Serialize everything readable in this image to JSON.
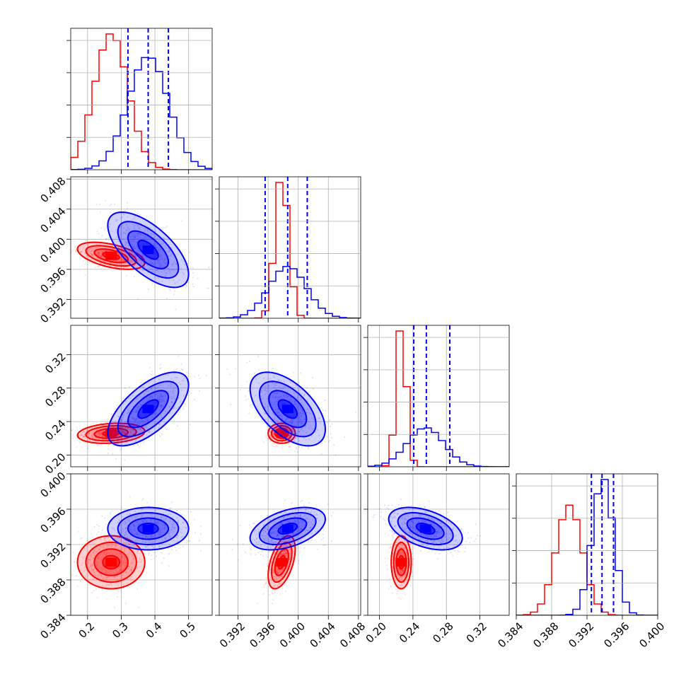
{
  "chart_data": {
    "type": "corner",
    "grid": true,
    "colors": {
      "red": "#ff0000",
      "blue": "#0000ff"
    },
    "parameters": [
      {
        "range": [
          0.15,
          0.57
        ],
        "ticks": [
          0.2,
          0.3,
          0.4,
          0.5
        ],
        "tick_labels": [
          "0.2",
          "0.3",
          "0.4",
          "0.5"
        ]
      },
      {
        "range": [
          0.3895,
          0.4083
        ],
        "ticks": [
          0.392,
          0.396,
          0.4,
          0.404,
          0.408
        ],
        "tick_labels": [
          "0.392",
          "0.396",
          "0.400",
          "0.404",
          "0.408"
        ]
      },
      {
        "range": [
          0.186,
          0.355
        ],
        "ticks": [
          0.2,
          0.24,
          0.28,
          0.32
        ],
        "tick_labels": [
          "0.20",
          "0.24",
          "0.28",
          "0.32"
        ]
      },
      {
        "range": [
          0.384,
          0.4
        ],
        "ticks": [
          0.384,
          0.388,
          0.392,
          0.396,
          0.4
        ],
        "tick_labels": [
          "0.384",
          "0.388",
          "0.392",
          "0.396",
          "0.400"
        ]
      }
    ],
    "series": [
      {
        "color": "red",
        "mean": [
          0.27,
          0.3978,
          0.226,
          0.39
        ],
        "sd": [
          0.05,
          0.0009,
          0.006,
          0.0015
        ],
        "corr": [
          [
            0,
            1,
            -0.5
          ],
          [
            0,
            2,
            0.2
          ],
          [
            0,
            3,
            0.0
          ],
          [
            1,
            2,
            0.0
          ],
          [
            1,
            3,
            0.5
          ],
          [
            2,
            3,
            0.0
          ]
        ]
      },
      {
        "color": "blue",
        "mean": [
          0.38,
          0.3986,
          0.255,
          0.3938
        ],
        "sd": [
          0.06,
          0.0025,
          0.022,
          0.0012
        ],
        "corr": [
          [
            0,
            1,
            -0.65
          ],
          [
            0,
            2,
            0.65
          ],
          [
            0,
            3,
            0.0
          ],
          [
            1,
            2,
            -0.55
          ],
          [
            1,
            3,
            0.45
          ],
          [
            2,
            3,
            -0.45
          ]
        ]
      }
    ],
    "quantile_lines": [
      {
        "param": 0,
        "values": [
          0.32,
          0.38,
          0.44
        ]
      },
      {
        "param": 1,
        "values": [
          0.3956,
          0.3986,
          0.4012
        ]
      },
      {
        "param": 2,
        "values": [
          0.241,
          0.256,
          0.284
        ]
      },
      {
        "param": 3,
        "values": [
          0.3925,
          0.3937,
          0.395
        ]
      }
    ],
    "contour_levels_sigma": [
      0.5,
      1.0,
      1.5,
      2.0
    ]
  }
}
